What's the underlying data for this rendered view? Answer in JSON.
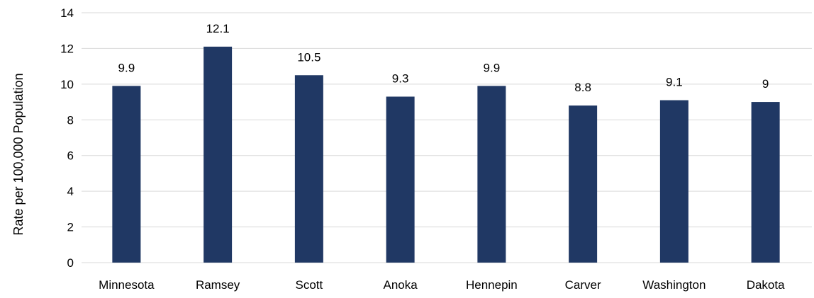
{
  "chart_data": {
    "type": "bar",
    "title": "",
    "xlabel": "",
    "ylabel": "Rate per 100,000 Population",
    "categories": [
      "Minnesota",
      "Ramsey",
      "Scott",
      "Anoka",
      "Hennepin",
      "Carver",
      "Washington",
      "Dakota"
    ],
    "values": [
      9.9,
      12.1,
      10.5,
      9.3,
      9.9,
      8.8,
      9.1,
      9
    ],
    "data_labels": [
      "9.9",
      "12.1",
      "10.5",
      "9.3",
      "9.9",
      "8.8",
      "9.1",
      "9"
    ],
    "ylim": [
      0,
      14
    ],
    "yticks": [
      0,
      2,
      4,
      6,
      8,
      10,
      12,
      14
    ],
    "grid": true,
    "legend": "none",
    "bar_color": "#203864",
    "grid_color": "#d9d9d9"
  }
}
